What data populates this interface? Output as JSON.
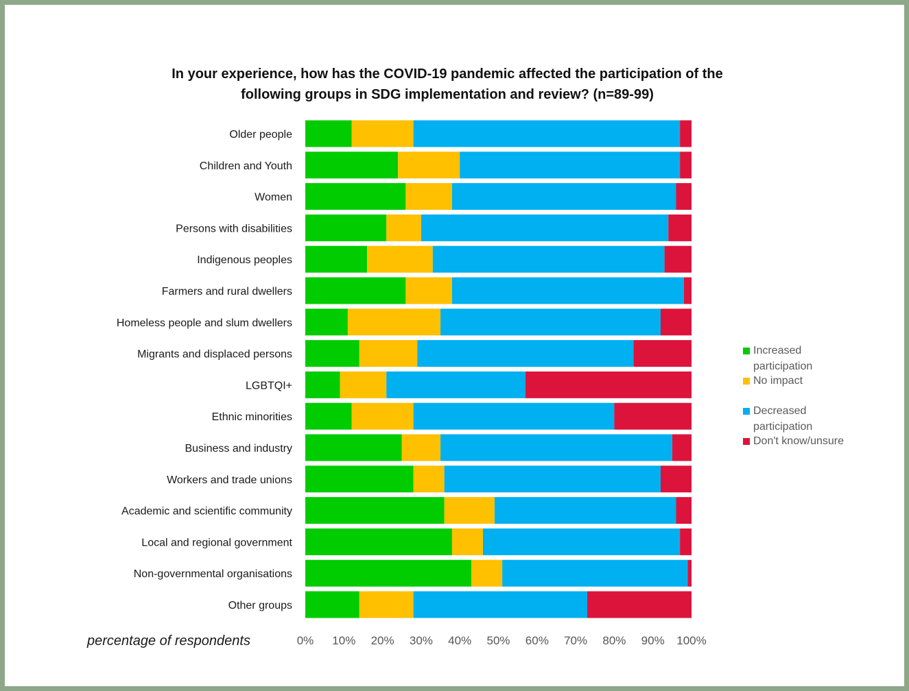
{
  "chart_data": {
    "type": "bar",
    "orientation": "horizontal",
    "stacked": "percent",
    "title_lines": [
      "In your experience, how has the COVID-19 pandemic affected the participation of the",
      "following groups in SDG implementation and review? (n=89-99)"
    ],
    "xlabel": "percentage of respondents",
    "ylabel": "",
    "xlim": [
      0,
      100
    ],
    "x_ticks": [
      "0%",
      "10%",
      "20%",
      "30%",
      "40%",
      "50%",
      "60%",
      "70%",
      "80%",
      "90%",
      "100%"
    ],
    "grid": false,
    "legend_position": "right",
    "categories": [
      "Older people",
      "Children and Youth",
      "Women",
      "Persons with disabilities",
      "Indigenous peoples",
      "Farmers and rural dwellers",
      "Homeless people and slum dwellers",
      "Migrants and displaced persons",
      "LGBTQI+",
      "Ethnic minorities",
      "Business and industry",
      "Workers and trade unions",
      "Academic and scientific community",
      "Local and regional government",
      "Non-governmental organisations",
      "Other groups"
    ],
    "series": [
      {
        "name": "Increased participation",
        "color": "#00cc00",
        "values": [
          12,
          24,
          26,
          21,
          16,
          26,
          11,
          14,
          9,
          12,
          25,
          28,
          36,
          38,
          43,
          14
        ]
      },
      {
        "name": "No impact",
        "color": "#ffc000",
        "values": [
          16,
          16,
          12,
          9,
          17,
          12,
          24,
          15,
          12,
          16,
          10,
          8,
          13,
          8,
          8,
          14
        ]
      },
      {
        "name": "Decreased participation",
        "color": "#00b0f0",
        "values": [
          69,
          57,
          58,
          64,
          60,
          60,
          57,
          56,
          36,
          52,
          60,
          56,
          47,
          51,
          48,
          45
        ]
      },
      {
        "name": "Don't know/unsure",
        "color": "#dc143c",
        "values": [
          3,
          3,
          4,
          6,
          7,
          2,
          8,
          15,
          43,
          20,
          5,
          8,
          4,
          3,
          1,
          27
        ]
      }
    ]
  }
}
